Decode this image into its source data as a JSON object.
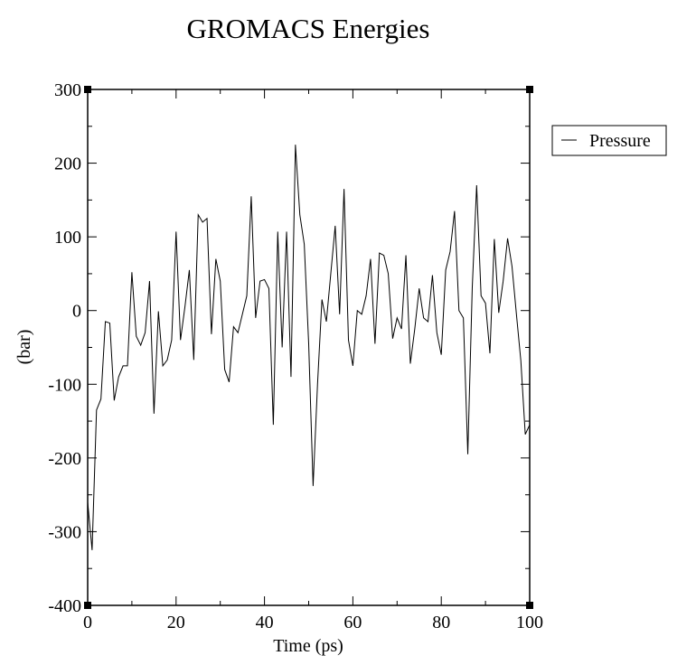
{
  "chart_data": {
    "type": "line",
    "title": "GROMACS Energies",
    "xlabel": "Time (ps)",
    "ylabel": "(bar)",
    "xlim": [
      0,
      100
    ],
    "ylim": [
      -400,
      300
    ],
    "x_ticks": [
      0,
      20,
      40,
      60,
      80,
      100
    ],
    "y_ticks": [
      -400,
      -300,
      -200,
      -100,
      0,
      100,
      200,
      300
    ],
    "legend_position": "right",
    "grid": false,
    "series": [
      {
        "name": "Pressure",
        "color": "#000000",
        "x": [
          0,
          1,
          2,
          3,
          4,
          5,
          6,
          7,
          8,
          9,
          10,
          11,
          12,
          13,
          14,
          15,
          16,
          17,
          18,
          19,
          20,
          21,
          22,
          23,
          24,
          25,
          26,
          27,
          28,
          29,
          30,
          31,
          32,
          33,
          34,
          35,
          36,
          37,
          38,
          39,
          40,
          41,
          42,
          43,
          44,
          45,
          46,
          47,
          48,
          49,
          50,
          51,
          52,
          53,
          54,
          55,
          56,
          57,
          58,
          59,
          60,
          61,
          62,
          63,
          64,
          65,
          66,
          67,
          68,
          69,
          70,
          71,
          72,
          73,
          74,
          75,
          76,
          77,
          78,
          79,
          80,
          81,
          82,
          83,
          84,
          85,
          86,
          87,
          88,
          89,
          90,
          91,
          92,
          93,
          94,
          95,
          96,
          97,
          98,
          99,
          100
        ],
        "values": [
          -260,
          -325,
          -135,
          -120,
          -15,
          -17,
          -122,
          -90,
          -75,
          -75,
          52,
          -35,
          -47,
          -30,
          40,
          -140,
          -1,
          -75,
          -67,
          -40,
          107,
          -40,
          5,
          55,
          -67,
          130,
          120,
          125,
          -32,
          70,
          40,
          -80,
          -97,
          -22,
          -30,
          -5,
          20,
          155,
          -10,
          40,
          42,
          30,
          -155,
          107,
          -50,
          107,
          -90,
          225,
          130,
          90,
          -45,
          -238,
          -100,
          15,
          -15,
          50,
          115,
          -5,
          165,
          -40,
          -75,
          0,
          -5,
          20,
          70,
          -45,
          78,
          75,
          50,
          -38,
          -10,
          -25,
          75,
          -72,
          -25,
          30,
          -10,
          -15,
          48,
          -30,
          -60,
          55,
          80,
          135,
          0,
          -10,
          -195,
          30,
          170,
          20,
          10,
          -58,
          97,
          -3,
          40,
          98,
          60,
          -5,
          -68,
          -168,
          -155
        ]
      }
    ]
  }
}
